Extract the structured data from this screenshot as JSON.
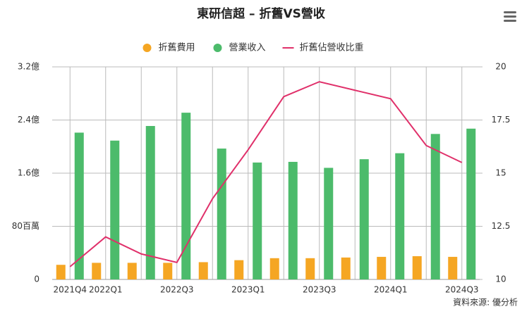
{
  "chart_data": {
    "type": "bar",
    "title": "東研信超 – 折舊VS營收",
    "source": "資料來源: 優分析",
    "categories": [
      "2021Q4",
      "2022Q1",
      null,
      "2022Q3",
      null,
      "2023Q1",
      null,
      "2023Q3",
      null,
      "2024Q1",
      null,
      "2024Q3"
    ],
    "series": [
      {
        "name": "折舊費用",
        "color": "#f5a623",
        "type": "bar",
        "values": [
          22,
          25,
          25,
          25,
          26,
          29,
          32,
          32,
          33,
          34,
          35,
          34
        ]
      },
      {
        "name": "營業收入",
        "color": "#4cbb6b",
        "type": "bar",
        "values": [
          221,
          209,
          231,
          251,
          197,
          176,
          177,
          168,
          181,
          190,
          219,
          227
        ]
      },
      {
        "name": "折舊佔營收比重",
        "color": "#e0306a",
        "type": "line",
        "axis": "y2",
        "values": [
          10.6,
          12.0,
          11.2,
          10.8,
          13.8,
          16.1,
          18.6,
          19.3,
          18.9,
          18.5,
          16.3,
          15.5
        ]
      }
    ],
    "ylim": [
      0,
      320
    ],
    "yticks": [
      0,
      {
        "value": 80,
        "label": "80百萬"
      },
      {
        "value": 160,
        "label": "1.6億"
      },
      {
        "value": 240,
        "label": "2.4億"
      },
      {
        "value": 320,
        "label": "3.2億"
      }
    ],
    "y2lim": [
      10,
      20
    ],
    "y2ticks": [
      10,
      12.5,
      15,
      17.5,
      20
    ],
    "grid": true
  }
}
